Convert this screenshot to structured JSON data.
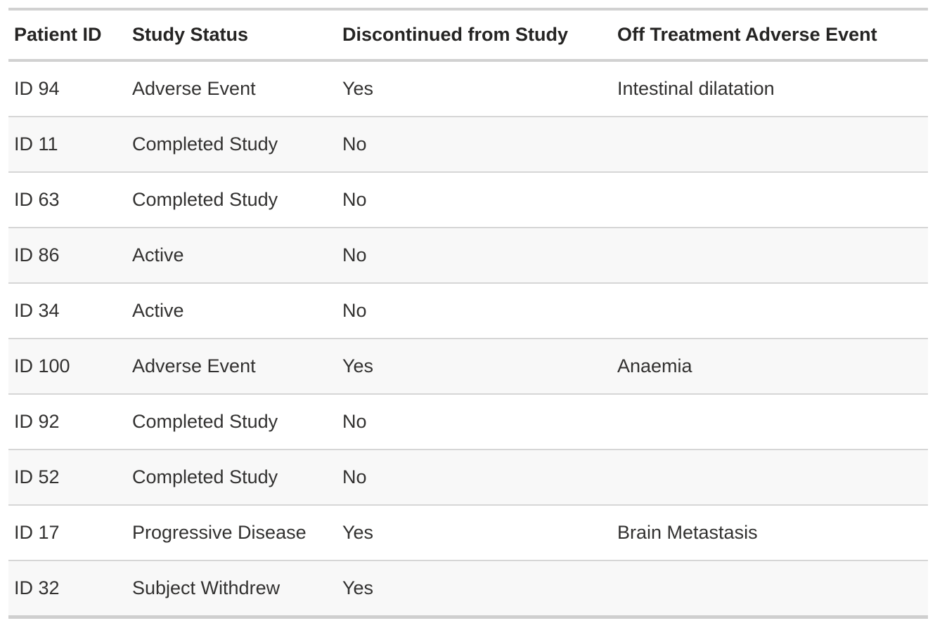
{
  "chart_data": {
    "type": "table",
    "title": "",
    "columns": [
      "Patient ID",
      "Study Status",
      "Discontinued from Study",
      "Off Treatment Adverse Event"
    ],
    "rows": [
      [
        "ID 94",
        "Adverse Event",
        "Yes",
        "Intestinal dilatation"
      ],
      [
        "ID 11",
        "Completed Study",
        "No",
        ""
      ],
      [
        "ID 63",
        "Completed Study",
        "No",
        ""
      ],
      [
        "ID 86",
        "Active",
        "No",
        ""
      ],
      [
        "ID 34",
        "Active",
        "No",
        ""
      ],
      [
        "ID 100",
        "Adverse Event",
        "Yes",
        "Anaemia"
      ],
      [
        "ID 92",
        "Completed Study",
        "No",
        ""
      ],
      [
        "ID 52",
        "Completed Study",
        "No",
        ""
      ],
      [
        "ID 17",
        "Progressive Disease",
        "Yes",
        "Brain Metastasis"
      ],
      [
        "ID 32",
        "Subject Withdrew",
        "Yes",
        ""
      ]
    ],
    "layout": {
      "grid_horizontal": true,
      "grid_vertical": false,
      "row_striping": "even-rows-shaded"
    }
  },
  "colors": {
    "background": "#ffffff",
    "grid_line": "#d1d1d1",
    "row_divider": "#d6d6d6",
    "row_stripe": "#f8f8f8",
    "header_text": "#252423",
    "body_text": "#323130"
  }
}
